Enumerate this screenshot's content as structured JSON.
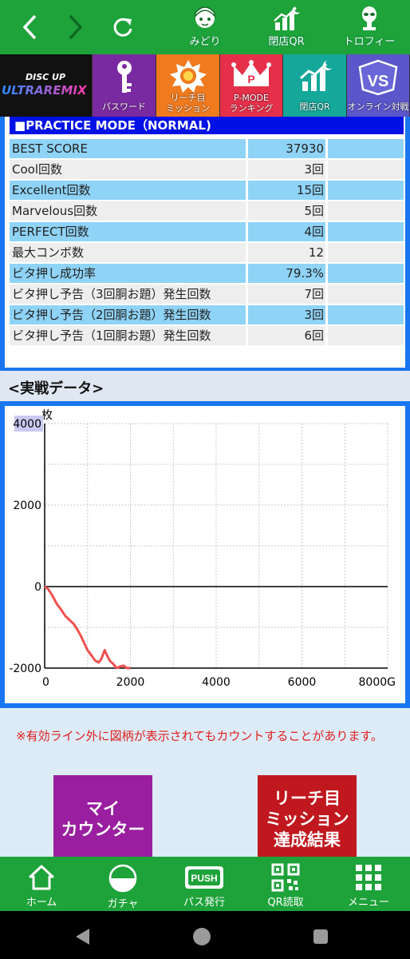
{
  "topbar": {
    "items": [
      {
        "label": "みどり",
        "icon": "character-icon"
      },
      {
        "label": "閉店QR",
        "icon": "chart-moon-icon"
      },
      {
        "label": "トロフィー",
        "icon": "alien-trophy-icon"
      }
    ]
  },
  "tiles": {
    "logo_top": "DISC UP",
    "logo_main": "ULTRAREMIX",
    "items": [
      {
        "label": "パスワード",
        "icon": "key-icon"
      },
      {
        "label": "リーチ目\nミッション",
        "icon": "mission-badge-icon"
      },
      {
        "label": "P-MODE\nランキング",
        "icon": "crown-icon"
      },
      {
        "label": "閉店QR",
        "icon": "chart-moon-icon"
      },
      {
        "label": "オンライン対戦",
        "icon": "vs-badge-icon"
      }
    ]
  },
  "practice": {
    "header": "■PRACTICE MODE（NORMAL)",
    "rows": [
      {
        "label": "BEST SCORE",
        "value": "37930"
      },
      {
        "label": "Cool回数",
        "value": "3回"
      },
      {
        "label": "Excellent回数",
        "value": "15回"
      },
      {
        "label": "Marvelous回数",
        "value": "5回"
      },
      {
        "label": "PERFECT回数",
        "value": "4回"
      },
      {
        "label": "最大コンボ数",
        "value": "12"
      },
      {
        "label": "ビタ押し成功率",
        "value": "79.3%"
      },
      {
        "label": "ビタ押し予告（3回胴お題）発生回数",
        "value": "7回"
      },
      {
        "label": "ビタ押し予告（2回胴お題）発生回数",
        "value": "3回"
      },
      {
        "label": "ビタ押し予告（1回胴お題）発生回数",
        "value": "6回"
      }
    ]
  },
  "section": {
    "title": "<実戦データ>"
  },
  "chart_data": {
    "type": "line",
    "title": "",
    "ylabel": "枚",
    "xlabel": "",
    "ylim": [
      -2000,
      4000
    ],
    "xlim": [
      0,
      8000
    ],
    "yticks": [
      "4000",
      "2000",
      "0",
      "-2000"
    ],
    "xticks": [
      "0",
      "2000",
      "4000",
      "6000",
      "8000G"
    ],
    "grid": true,
    "series": [
      {
        "color": "#f05050",
        "x": [
          0,
          80,
          180,
          280,
          380,
          480,
          580,
          680,
          760,
          840,
          920,
          1000,
          1100,
          1180,
          1260,
          1320,
          1400,
          1460,
          1520,
          1600,
          1680,
          1760,
          1840,
          1920,
          2000
        ],
        "y": [
          0,
          -60,
          -220,
          -420,
          -560,
          -720,
          -820,
          -920,
          -1050,
          -1200,
          -1380,
          -1560,
          -1700,
          -1820,
          -1860,
          -1780,
          -1560,
          -1700,
          -1820,
          -1900,
          -2000,
          -1960,
          -1940,
          -2000,
          -2000
        ]
      }
    ]
  },
  "notice": {
    "text": "※有効ライン外に図柄が表示されてもカウントすることがあります。"
  },
  "buttons": {
    "counter": "マイ\nカウンター",
    "reach": "リーチ目\nミッション\n達成結果"
  },
  "bottomnav": {
    "items": [
      {
        "label": "ホーム",
        "icon": "home-icon"
      },
      {
        "label": "ガチャ",
        "icon": "gacha-icon"
      },
      {
        "label": "パス発行",
        "icon": "push-icon",
        "icon_text": "PUSH"
      },
      {
        "label": "QR読取",
        "icon": "qr-icon"
      },
      {
        "label": "メニュー",
        "icon": "grid-menu-icon"
      }
    ]
  }
}
